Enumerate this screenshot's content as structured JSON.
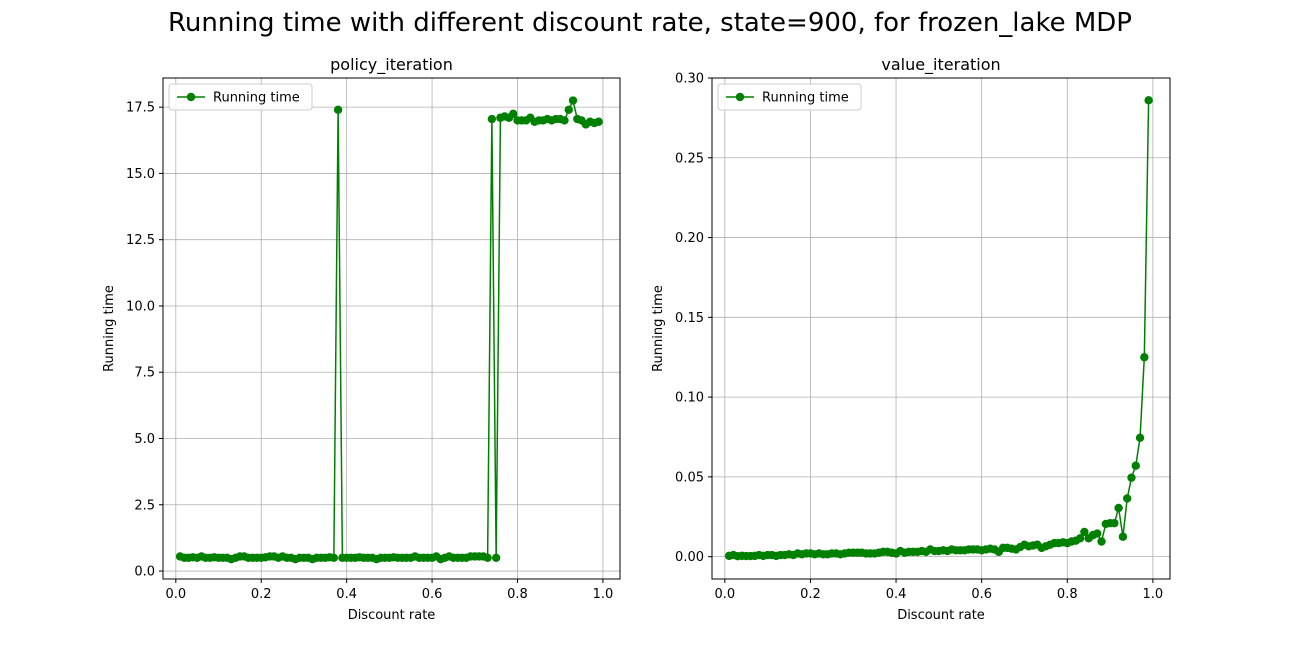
{
  "figure": {
    "suptitle": "Running time with different discount rate, state=900, for frozen_lake MDP"
  },
  "chart_data": [
    {
      "type": "line",
      "title": "policy_iteration",
      "xlabel": "Discount rate",
      "ylabel": "Running time",
      "xlim": [
        -0.03,
        1.04
      ],
      "ylim": [
        -0.3,
        18.6
      ],
      "xticks": [
        0.0,
        0.2,
        0.4,
        0.6,
        0.8,
        1.0
      ],
      "xtick_labels": [
        "0.0",
        "0.2",
        "0.4",
        "0.6",
        "0.8",
        "1.0"
      ],
      "yticks": [
        0.0,
        2.5,
        5.0,
        7.5,
        10.0,
        12.5,
        15.0,
        17.5
      ],
      "ytick_labels": [
        "0.0",
        "2.5",
        "5.0",
        "7.5",
        "10.0",
        "12.5",
        "15.0",
        "17.5"
      ],
      "grid": true,
      "legend": "upper-left",
      "color": "#008000",
      "series": [
        {
          "name": "Running time",
          "x": [
            0.01,
            0.02,
            0.03,
            0.04,
            0.05,
            0.06,
            0.07,
            0.08,
            0.09,
            0.1,
            0.11,
            0.12,
            0.13,
            0.14,
            0.15,
            0.16,
            0.17,
            0.18,
            0.19,
            0.2,
            0.21,
            0.22,
            0.23,
            0.24,
            0.25,
            0.26,
            0.27,
            0.28,
            0.29,
            0.3,
            0.31,
            0.32,
            0.33,
            0.34,
            0.35,
            0.36,
            0.37,
            0.38,
            0.39,
            0.4,
            0.41,
            0.42,
            0.43,
            0.44,
            0.45,
            0.46,
            0.47,
            0.48,
            0.49,
            0.5,
            0.51,
            0.52,
            0.53,
            0.54,
            0.55,
            0.56,
            0.57,
            0.58,
            0.59,
            0.6,
            0.61,
            0.62,
            0.63,
            0.64,
            0.65,
            0.66,
            0.67,
            0.68,
            0.69,
            0.7,
            0.71,
            0.72,
            0.73,
            0.74,
            0.75,
            0.76,
            0.77,
            0.78,
            0.79,
            0.8,
            0.81,
            0.82,
            0.83,
            0.84,
            0.85,
            0.86,
            0.87,
            0.88,
            0.89,
            0.9,
            0.91,
            0.92,
            0.93,
            0.94,
            0.95,
            0.96,
            0.97,
            0.98,
            0.99
          ],
          "values": [
            0.55,
            0.5,
            0.5,
            0.52,
            0.5,
            0.55,
            0.5,
            0.5,
            0.52,
            0.5,
            0.5,
            0.5,
            0.45,
            0.5,
            0.55,
            0.55,
            0.5,
            0.5,
            0.5,
            0.5,
            0.52,
            0.55,
            0.55,
            0.5,
            0.55,
            0.5,
            0.5,
            0.45,
            0.5,
            0.5,
            0.5,
            0.45,
            0.5,
            0.5,
            0.5,
            0.52,
            0.5,
            17.4,
            0.5,
            0.5,
            0.5,
            0.5,
            0.52,
            0.5,
            0.5,
            0.5,
            0.45,
            0.5,
            0.5,
            0.5,
            0.52,
            0.5,
            0.5,
            0.5,
            0.5,
            0.55,
            0.5,
            0.5,
            0.5,
            0.5,
            0.55,
            0.45,
            0.5,
            0.55,
            0.5,
            0.5,
            0.5,
            0.5,
            0.55,
            0.55,
            0.55,
            0.55,
            0.5,
            17.05,
            0.5,
            17.1,
            17.15,
            17.1,
            17.25,
            17.0,
            17.0,
            17.0,
            17.1,
            16.95,
            17.0,
            17.0,
            17.05,
            17.0,
            17.05,
            17.05,
            17.0,
            17.4,
            17.75,
            17.05,
            17.0,
            16.85,
            16.95,
            16.9,
            16.95
          ]
        }
      ]
    },
    {
      "type": "line",
      "title": "value_iteration",
      "xlabel": "Discount rate",
      "ylabel": "Running time",
      "xlim": [
        -0.03,
        1.04
      ],
      "ylim": [
        -0.014,
        0.3
      ],
      "xticks": [
        0.0,
        0.2,
        0.4,
        0.6,
        0.8,
        1.0
      ],
      "xtick_labels": [
        "0.0",
        "0.2",
        "0.4",
        "0.6",
        "0.8",
        "1.0"
      ],
      "yticks": [
        0.0,
        0.05,
        0.1,
        0.15,
        0.2,
        0.25,
        0.3
      ],
      "ytick_labels": [
        "0.00",
        "0.05",
        "0.10",
        "0.15",
        "0.20",
        "0.25",
        "0.30"
      ],
      "grid": true,
      "legend": "upper-left",
      "color": "#008000",
      "series": [
        {
          "name": "Running time",
          "x": [
            0.01,
            0.02,
            0.03,
            0.04,
            0.05,
            0.06,
            0.07,
            0.08,
            0.09,
            0.1,
            0.11,
            0.12,
            0.13,
            0.14,
            0.15,
            0.16,
            0.17,
            0.18,
            0.19,
            0.2,
            0.21,
            0.22,
            0.23,
            0.24,
            0.25,
            0.26,
            0.27,
            0.28,
            0.29,
            0.3,
            0.31,
            0.32,
            0.33,
            0.34,
            0.35,
            0.36,
            0.37,
            0.38,
            0.39,
            0.4,
            0.41,
            0.42,
            0.43,
            0.44,
            0.45,
            0.46,
            0.47,
            0.48,
            0.49,
            0.5,
            0.51,
            0.52,
            0.53,
            0.54,
            0.55,
            0.56,
            0.57,
            0.58,
            0.59,
            0.6,
            0.61,
            0.62,
            0.63,
            0.64,
            0.65,
            0.66,
            0.67,
            0.68,
            0.69,
            0.7,
            0.71,
            0.72,
            0.73,
            0.74,
            0.75,
            0.76,
            0.77,
            0.78,
            0.79,
            0.8,
            0.81,
            0.82,
            0.83,
            0.84,
            0.85,
            0.86,
            0.87,
            0.88,
            0.89,
            0.9,
            0.91,
            0.92,
            0.93,
            0.94,
            0.95,
            0.96,
            0.97,
            0.98,
            0.99
          ],
          "values": [
            0.0005,
            0.001,
            0.0003,
            0.0005,
            0.0004,
            0.0004,
            0.0005,
            0.001,
            0.0005,
            0.001,
            0.001,
            0.0005,
            0.001,
            0.001,
            0.0015,
            0.001,
            0.002,
            0.0015,
            0.002,
            0.002,
            0.0015,
            0.002,
            0.0015,
            0.0015,
            0.002,
            0.002,
            0.0015,
            0.002,
            0.0025,
            0.0025,
            0.0025,
            0.0025,
            0.002,
            0.002,
            0.002,
            0.0025,
            0.003,
            0.003,
            0.0025,
            0.002,
            0.0035,
            0.0025,
            0.003,
            0.003,
            0.003,
            0.0035,
            0.003,
            0.0045,
            0.0035,
            0.0035,
            0.004,
            0.0035,
            0.0045,
            0.004,
            0.004,
            0.004,
            0.0045,
            0.0045,
            0.0045,
            0.004,
            0.0045,
            0.005,
            0.0045,
            0.003,
            0.0055,
            0.0055,
            0.005,
            0.0045,
            0.006,
            0.0075,
            0.0065,
            0.007,
            0.0075,
            0.0055,
            0.0065,
            0.0075,
            0.0085,
            0.0085,
            0.009,
            0.0085,
            0.0095,
            0.01,
            0.0115,
            0.0155,
            0.0115,
            0.0135,
            0.0145,
            0.0095,
            0.0205,
            0.021,
            0.021,
            0.0305,
            0.0125,
            0.0365,
            0.0495,
            0.057,
            0.0745,
            0.125,
            0.286
          ]
        }
      ]
    }
  ]
}
